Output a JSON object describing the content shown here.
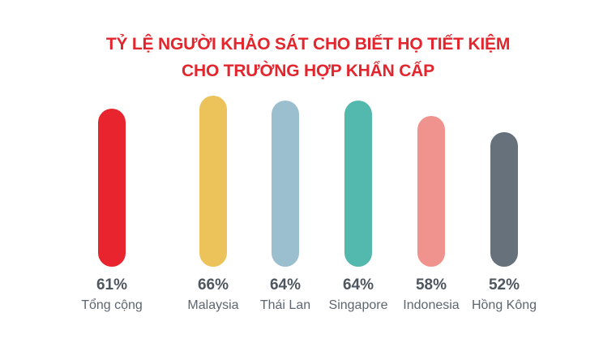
{
  "title": {
    "line1": "TỶ LỆ NGƯỜI KHẢO SÁT CHO BIẾT HỌ TIẾT KIỆM",
    "line2": "CHO TRƯỜNG HỢP KHẨN CẤP",
    "color": "#E3252D"
  },
  "chart_data": {
    "type": "bar",
    "title": "TỶ LỆ NGƯỜI KHẢO SÁT CHO BIẾT HỌ TIẾT KIỆM CHO TRƯỜNG HỢP KHẨN CẤP",
    "categories": [
      "Tổng cộng",
      "Malaysia",
      "Thái Lan",
      "Singapore",
      "Indonesia",
      "Hồng Kông"
    ],
    "values": [
      61,
      66,
      64,
      64,
      58,
      52
    ],
    "value_labels": [
      "61%",
      "66%",
      "64%",
      "64%",
      "58%",
      "52%"
    ],
    "bar_colors": [
      "#E8242F",
      "#ECC35A",
      "#9CBFD0",
      "#53B8AE",
      "#F0928E",
      "#67717B"
    ],
    "unit": "%",
    "ylim": [
      0,
      70
    ],
    "grid": false,
    "legend": false,
    "bar_shape": "rounded-pill",
    "layout_note": "first bar (total) separated from country bars by a wider gap; bars bottom-aligned, no axes"
  },
  "text_colors": {
    "value_label": "#4E5660",
    "category_label": "#5D6670"
  }
}
